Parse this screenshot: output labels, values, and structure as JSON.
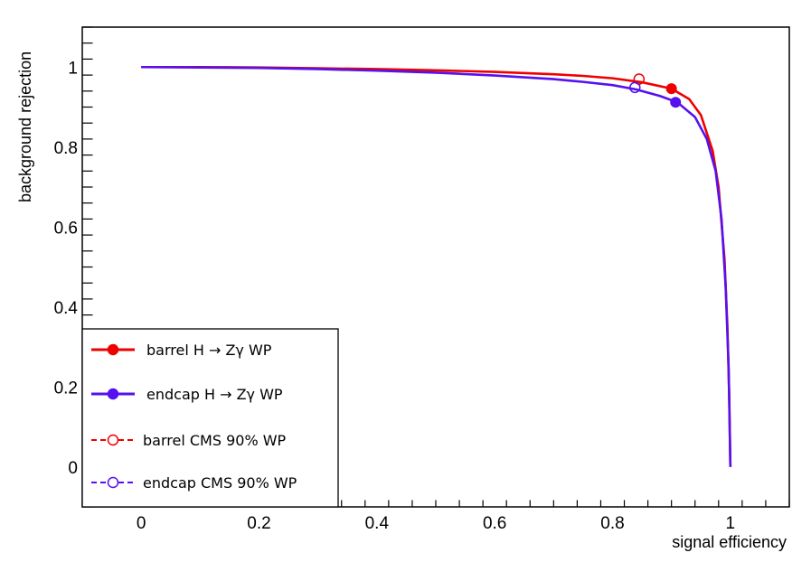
{
  "chart_data": {
    "type": "line",
    "xlabel": "signal efficiency",
    "ylabel": "background rejection",
    "xlim": [
      -0.1,
      1.1
    ],
    "ylim": [
      -0.1,
      1.1
    ],
    "xticks": [
      0,
      0.2,
      0.4,
      0.6,
      0.8,
      1
    ],
    "xtick_labels": [
      "0",
      "0.2",
      "0.4",
      "0.6",
      "0.8",
      "1"
    ],
    "yticks": [
      0,
      0.2,
      0.4,
      0.6,
      0.8,
      1
    ],
    "ytick_labels": [
      "0",
      "0.2",
      "0.4",
      "0.6",
      "0.8",
      "1"
    ],
    "grid": false,
    "legend_position": "bottom-left",
    "series": [
      {
        "name": "barrel H → Zγ WP",
        "color": "#ee0000",
        "style": "line-filled-marker",
        "x": [
          0,
          0.1,
          0.2,
          0.3,
          0.4,
          0.5,
          0.6,
          0.7,
          0.75,
          0.8,
          0.85,
          0.9,
          0.93,
          0.95,
          0.97,
          0.98,
          0.99,
          0.995,
          0.998,
          1.0
        ],
        "y": [
          1.0,
          1.0,
          0.999,
          0.997,
          0.995,
          0.992,
          0.988,
          0.982,
          0.978,
          0.972,
          0.962,
          0.946,
          0.92,
          0.88,
          0.79,
          0.7,
          0.52,
          0.35,
          0.18,
          0.0
        ],
        "marker": {
          "x": 0.9,
          "y": 0.946,
          "filled": true
        }
      },
      {
        "name": "endcap H → Zγ WP",
        "color": "#5511ee",
        "style": "line-filled-marker",
        "x": [
          0,
          0.1,
          0.2,
          0.3,
          0.4,
          0.5,
          0.6,
          0.7,
          0.75,
          0.8,
          0.84,
          0.88,
          0.91,
          0.94,
          0.96,
          0.975,
          0.985,
          0.992,
          0.997,
          1.0
        ],
        "y": [
          1.0,
          0.999,
          0.998,
          0.995,
          0.991,
          0.986,
          0.979,
          0.97,
          0.963,
          0.955,
          0.944,
          0.928,
          0.912,
          0.875,
          0.82,
          0.74,
          0.62,
          0.45,
          0.25,
          0.0
        ],
        "marker": {
          "x": 0.907,
          "y": 0.912,
          "filled": true
        }
      },
      {
        "name": "barrel CMS 90% WP",
        "color": "#ee0000",
        "style": "dashed-open-marker",
        "marker": {
          "x": 0.845,
          "y": 0.97,
          "filled": false
        }
      },
      {
        "name": "endcap CMS 90% WP",
        "color": "#5511ee",
        "style": "dashed-open-marker",
        "marker": {
          "x": 0.838,
          "y": 0.949,
          "filled": false
        }
      }
    ]
  }
}
